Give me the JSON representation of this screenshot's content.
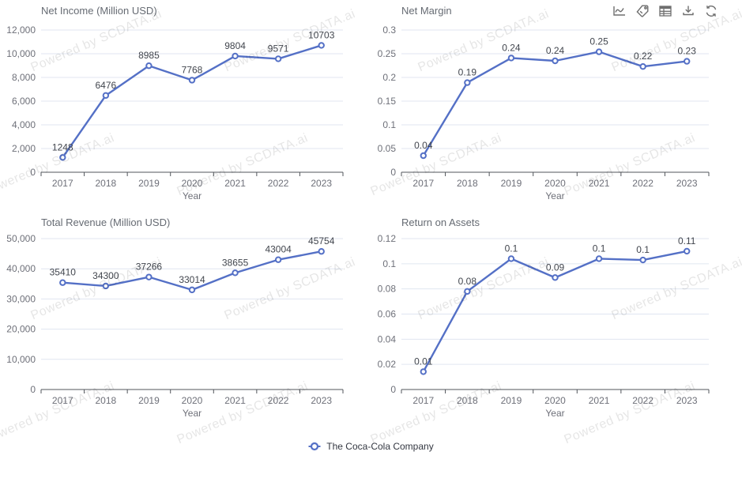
{
  "colors": {
    "series": "#5470C6",
    "grid_line": "#E0E6F1",
    "axis": "#51555B",
    "tick_label": "#6E7079",
    "title": "#666B73",
    "data_label": "#42464E",
    "legend_text": "#333741",
    "toolbar_icon": "#6E6E6E",
    "watermark": "rgba(0,0,0,0.10)"
  },
  "watermark": {
    "text": "Powered by SCDATA.ai"
  },
  "toolbar": {
    "icons": [
      "line-chart-icon",
      "tag-icon",
      "table-icon",
      "download-icon",
      "refresh-icon"
    ]
  },
  "legend": {
    "label": "The Coca-Cola Company"
  },
  "chart_data": [
    {
      "type": "line",
      "title": "Net Income (Million USD)",
      "xlabel": "Year",
      "ylabel": "",
      "grid": true,
      "legend_position": "bottom",
      "categories": [
        "2017",
        "2018",
        "2019",
        "2020",
        "2021",
        "2022",
        "2023"
      ],
      "ylim": [
        0,
        12000
      ],
      "ytick_values": [
        0,
        2000,
        4000,
        6000,
        8000,
        10000,
        12000
      ],
      "ytick_labels": [
        "0",
        "2,000",
        "4,000",
        "6,000",
        "8,000",
        "10,000",
        "12,000"
      ],
      "series": [
        {
          "name": "The Coca-Cola Company",
          "values": [
            1248,
            6476,
            8985,
            7768,
            9804,
            9571,
            10703
          ],
          "labels": [
            "1248",
            "6476",
            "8985",
            "7768",
            "9804",
            "9571",
            "10703"
          ]
        }
      ]
    },
    {
      "type": "line",
      "title": "Net Margin",
      "xlabel": "Year",
      "ylabel": "",
      "grid": true,
      "legend_position": "bottom",
      "categories": [
        "2017",
        "2018",
        "2019",
        "2020",
        "2021",
        "2022",
        "2023"
      ],
      "ylim": [
        0,
        0.3
      ],
      "ytick_values": [
        0,
        0.05,
        0.1,
        0.15,
        0.2,
        0.25,
        0.3
      ],
      "ytick_labels": [
        "0",
        "0.05",
        "0.1",
        "0.15",
        "0.2",
        "0.25",
        "0.3"
      ],
      "series": [
        {
          "name": "The Coca-Cola Company",
          "values": [
            0.035,
            0.189,
            0.241,
            0.235,
            0.254,
            0.223,
            0.234
          ],
          "labels": [
            "0.04",
            "0.19",
            "0.24",
            "0.24",
            "0.25",
            "0.22",
            "0.23"
          ]
        }
      ]
    },
    {
      "type": "line",
      "title": "Total Revenue (Million USD)",
      "xlabel": "Year",
      "ylabel": "",
      "grid": true,
      "legend_position": "bottom",
      "categories": [
        "2017",
        "2018",
        "2019",
        "2020",
        "2021",
        "2022",
        "2023"
      ],
      "ylim": [
        0,
        50000
      ],
      "ytick_values": [
        0,
        10000,
        20000,
        30000,
        40000,
        50000
      ],
      "ytick_labels": [
        "0",
        "10,000",
        "20,000",
        "30,000",
        "40,000",
        "50,000"
      ],
      "series": [
        {
          "name": "The Coca-Cola Company",
          "values": [
            35410,
            34300,
            37266,
            33014,
            38655,
            43004,
            45754
          ],
          "labels": [
            "35410",
            "34300",
            "37266",
            "33014",
            "38655",
            "43004",
            "45754"
          ]
        }
      ]
    },
    {
      "type": "line",
      "title": "Return on Assets",
      "xlabel": "Year",
      "ylabel": "",
      "grid": true,
      "legend_position": "bottom",
      "categories": [
        "2017",
        "2018",
        "2019",
        "2020",
        "2021",
        "2022",
        "2023"
      ],
      "ylim": [
        0,
        0.12
      ],
      "ytick_values": [
        0,
        0.02,
        0.04,
        0.06,
        0.08,
        0.1,
        0.12
      ],
      "ytick_labels": [
        "0",
        "0.02",
        "0.04",
        "0.06",
        "0.08",
        "0.1",
        "0.12"
      ],
      "series": [
        {
          "name": "The Coca-Cola Company",
          "values": [
            0.0142,
            0.078,
            0.104,
            0.089,
            0.104,
            0.103,
            0.11
          ],
          "labels": [
            "0.01",
            "0.08",
            "0.1",
            "0.09",
            "0.1",
            "0.1",
            "0.11"
          ]
        }
      ]
    }
  ]
}
